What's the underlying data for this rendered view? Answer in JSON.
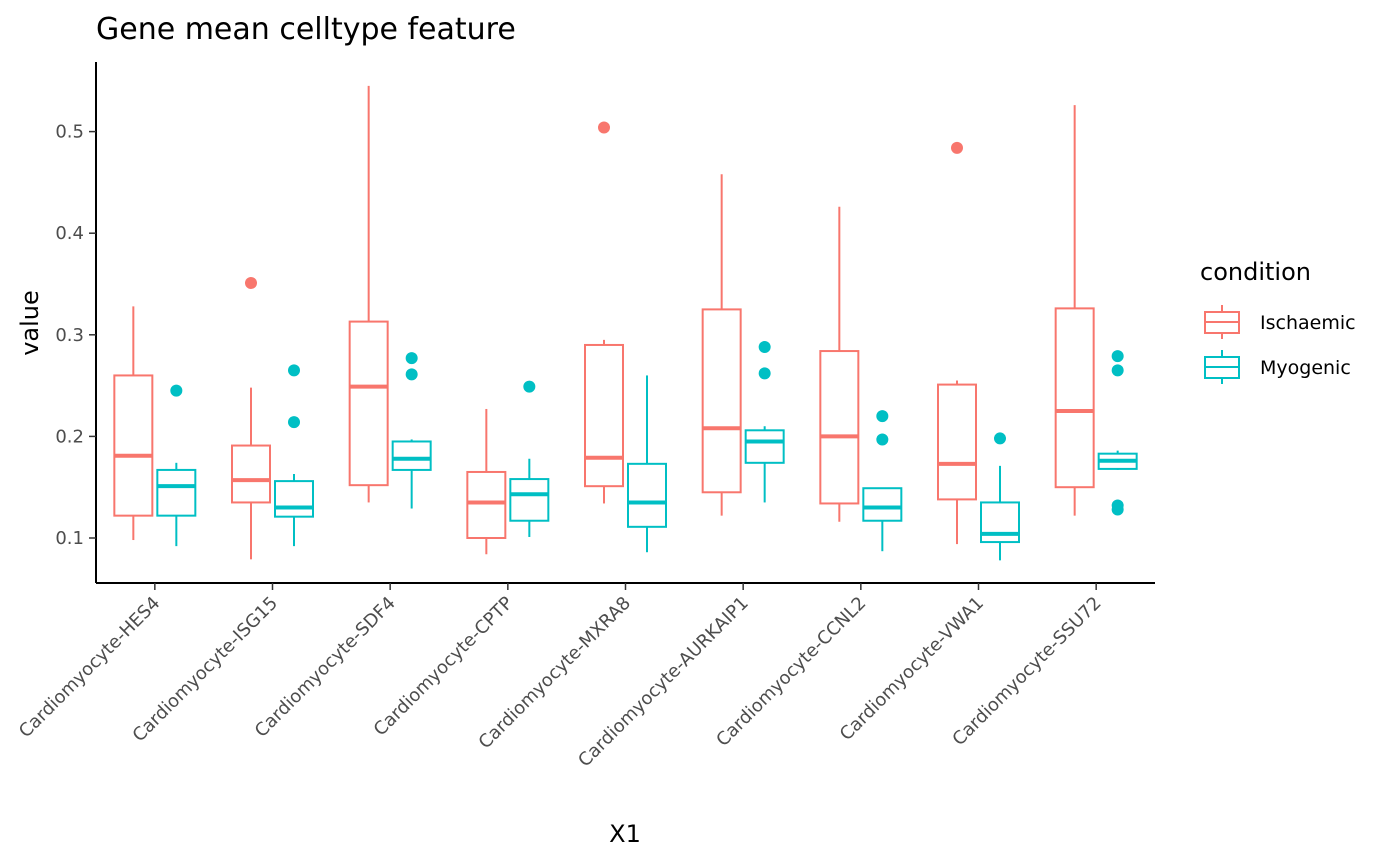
{
  "chart_data": {
    "type": "boxplot",
    "title": "Gene mean celltype feature",
    "xlabel": "X1",
    "ylabel": "value",
    "ylim": [
      0.05,
      0.56
    ],
    "y_ticks": [
      0.1,
      0.2,
      0.3,
      0.4,
      0.5
    ],
    "y_tick_labels": [
      "0.1",
      "0.2",
      "0.3",
      "0.4",
      "0.5"
    ],
    "grid": false,
    "legend": {
      "title": "condition",
      "placement": "right"
    },
    "categories": [
      "Cardiomyocyte-HES4",
      "Cardiomyocyte-ISG15",
      "Cardiomyocyte-SDF4",
      "Cardiomyocyte-CPTP",
      "Cardiomyocyte-MXRA8",
      "Cardiomyocyte-AURKAIP1",
      "Cardiomyocyte-CCNL2",
      "Cardiomyocyte-VWA1",
      "Cardiomyocyte-SSU72"
    ],
    "series": [
      {
        "name": "Ischaemic",
        "color": "#F8766D",
        "boxes": [
          {
            "min": 0.098,
            "q1": 0.122,
            "median": 0.181,
            "q3": 0.26,
            "max": 0.328,
            "outliers": []
          },
          {
            "min": 0.079,
            "q1": 0.135,
            "median": 0.157,
            "q3": 0.191,
            "max": 0.248,
            "outliers": [
              0.351
            ]
          },
          {
            "min": 0.135,
            "q1": 0.152,
            "median": 0.249,
            "q3": 0.313,
            "max": 0.545,
            "outliers": []
          },
          {
            "min": 0.084,
            "q1": 0.1,
            "median": 0.135,
            "q3": 0.165,
            "max": 0.227,
            "outliers": []
          },
          {
            "min": 0.134,
            "q1": 0.151,
            "median": 0.179,
            "q3": 0.29,
            "max": 0.295,
            "outliers": [
              0.504
            ]
          },
          {
            "min": 0.122,
            "q1": 0.145,
            "median": 0.208,
            "q3": 0.325,
            "max": 0.458,
            "outliers": []
          },
          {
            "min": 0.116,
            "q1": 0.134,
            "median": 0.2,
            "q3": 0.284,
            "max": 0.426,
            "outliers": []
          },
          {
            "min": 0.094,
            "q1": 0.138,
            "median": 0.173,
            "q3": 0.251,
            "max": 0.255,
            "outliers": [
              0.484
            ]
          },
          {
            "min": 0.122,
            "q1": 0.15,
            "median": 0.225,
            "q3": 0.326,
            "max": 0.526,
            "outliers": []
          }
        ]
      },
      {
        "name": "Myogenic",
        "color": "#00BFC4",
        "boxes": [
          {
            "min": 0.092,
            "q1": 0.122,
            "median": 0.151,
            "q3": 0.167,
            "max": 0.174,
            "outliers": [
              0.245
            ]
          },
          {
            "min": 0.092,
            "q1": 0.121,
            "median": 0.13,
            "q3": 0.156,
            "max": 0.163,
            "outliers": [
              0.214,
              0.265
            ]
          },
          {
            "min": 0.129,
            "q1": 0.167,
            "median": 0.178,
            "q3": 0.195,
            "max": 0.197,
            "outliers": [
              0.261,
              0.277
            ]
          },
          {
            "min": 0.101,
            "q1": 0.117,
            "median": 0.143,
            "q3": 0.158,
            "max": 0.178,
            "outliers": [
              0.249
            ]
          },
          {
            "min": 0.086,
            "q1": 0.111,
            "median": 0.135,
            "q3": 0.173,
            "max": 0.26,
            "outliers": []
          },
          {
            "min": 0.135,
            "q1": 0.174,
            "median": 0.195,
            "q3": 0.206,
            "max": 0.21,
            "outliers": [
              0.262,
              0.288
            ]
          },
          {
            "min": 0.087,
            "q1": 0.117,
            "median": 0.13,
            "q3": 0.149,
            "max": 0.149,
            "outliers": [
              0.197,
              0.22
            ]
          },
          {
            "min": 0.078,
            "q1": 0.096,
            "median": 0.104,
            "q3": 0.135,
            "max": 0.171,
            "outliers": [
              0.198
            ]
          },
          {
            "min": 0.167,
            "q1": 0.168,
            "median": 0.176,
            "q3": 0.183,
            "max": 0.186,
            "outliers": [
              0.128,
              0.132,
              0.265,
              0.279
            ]
          }
        ]
      }
    ]
  }
}
